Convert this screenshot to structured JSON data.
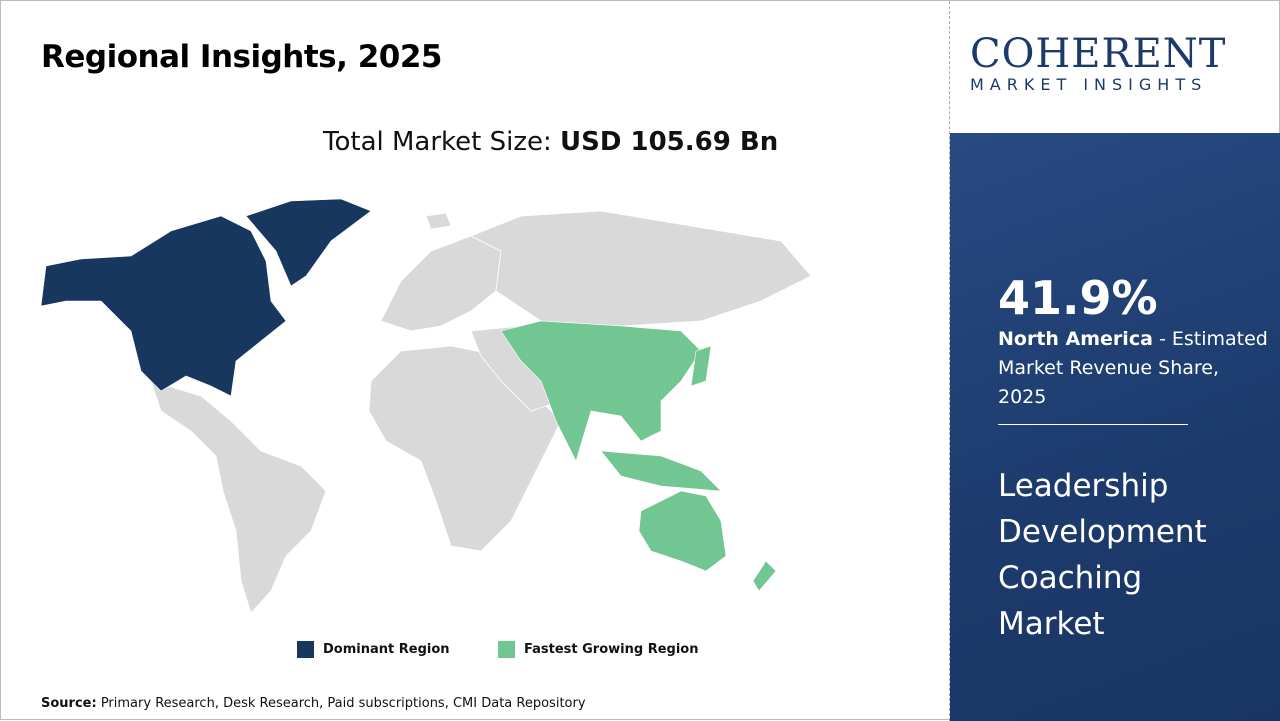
{
  "title": "Regional Insights, 2025",
  "total_market": {
    "label": "Total Market Size:",
    "value": "USD 105.69 Bn"
  },
  "legend": [
    {
      "label": "Dominant Region",
      "color": "#17375e"
    },
    {
      "label": "Fastest Growing Region",
      "color": "#72c692"
    }
  ],
  "source": {
    "label": "Source:",
    "text": " Primary Research, Desk Research, Paid subscriptions, CMI Data Repository"
  },
  "logo": {
    "brand": "COHERENT",
    "tagline": "MARKET INSIGHTS"
  },
  "stat": {
    "value": "41.9%",
    "region": "North America",
    "desc": " - Estimated Market Revenue Share, 2025"
  },
  "market_name": "Leadership Development Coaching Market",
  "map": {
    "dominant": [
      "North America"
    ],
    "fastest_growing": [
      "Asia Pacific"
    ],
    "other_color": "#d9d9d9"
  }
}
